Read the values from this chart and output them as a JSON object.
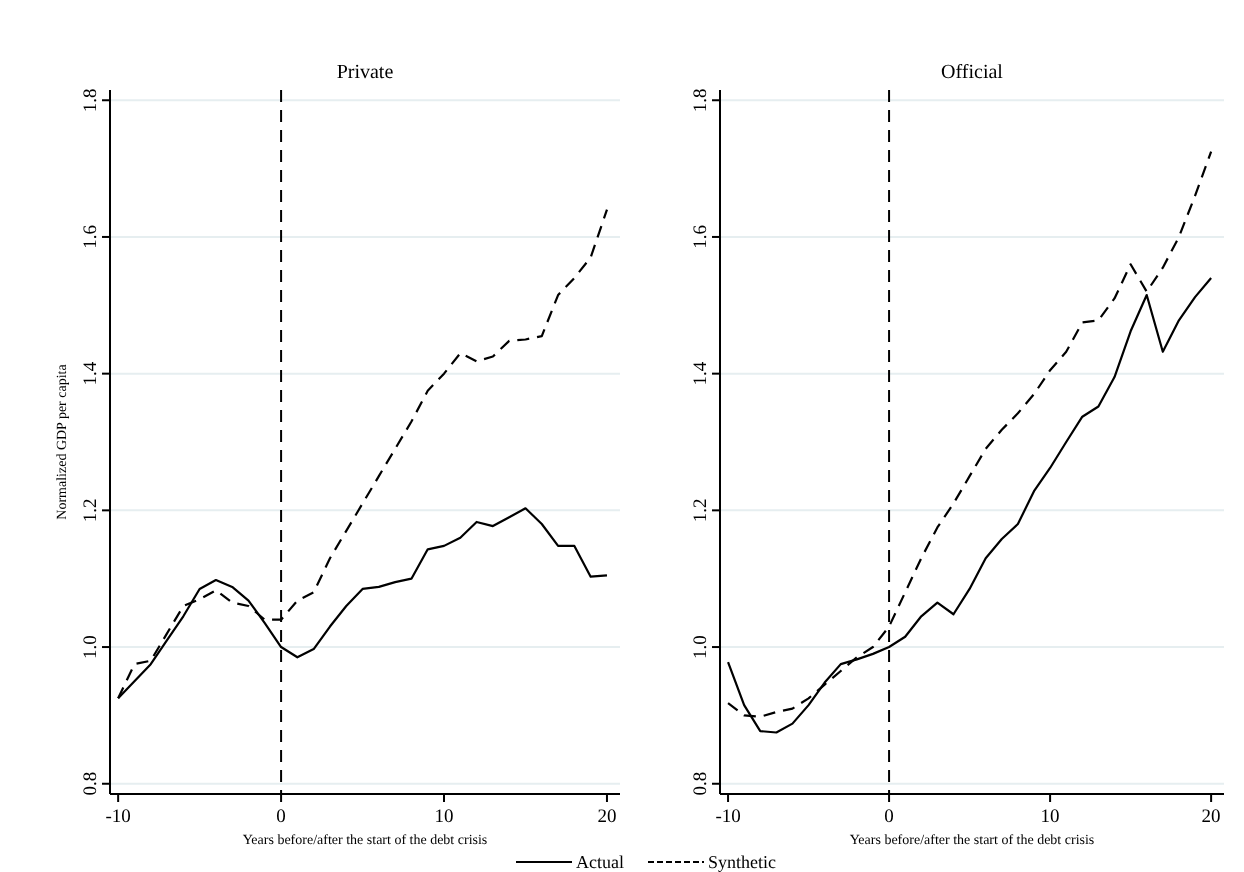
{
  "chart_data": [
    {
      "type": "line",
      "title": "Private",
      "xlabel": "Years before/after the start of the debt crisis",
      "ylabel": "Normalized GDP per capita",
      "x": [
        -10,
        -9,
        -8,
        -7,
        -6,
        -5,
        -4,
        -3,
        -2,
        -1,
        0,
        1,
        2,
        3,
        4,
        5,
        6,
        7,
        8,
        9,
        10,
        11,
        12,
        13,
        14,
        15,
        16,
        17,
        18,
        19,
        20
      ],
      "series": [
        {
          "name": "Actual",
          "color": "#000000",
          "line_style": "solid",
          "values": [
            0.925,
            0.95,
            0.975,
            1.01,
            1.045,
            1.085,
            1.098,
            1.088,
            1.068,
            1.035,
            1.0,
            0.985,
            0.997,
            1.03,
            1.06,
            1.085,
            1.088,
            1.095,
            1.1,
            1.143,
            1.148,
            1.16,
            1.183,
            1.177,
            1.19,
            1.203,
            1.18,
            1.148,
            1.148,
            1.103,
            1.105
          ]
        },
        {
          "name": "Synthetic",
          "color": "#000000",
          "line_style": "dashed",
          "values": [
            0.925,
            0.975,
            0.98,
            1.02,
            1.06,
            1.07,
            1.083,
            1.065,
            1.06,
            1.04,
            1.04,
            1.068,
            1.08,
            1.13,
            1.17,
            1.21,
            1.25,
            1.29,
            1.33,
            1.375,
            1.4,
            1.43,
            1.418,
            1.425,
            1.448,
            1.45,
            1.455,
            1.515,
            1.54,
            1.57,
            1.64
          ]
        }
      ],
      "xlim": [
        -10.5,
        20.8
      ],
      "ylim": [
        0.785,
        1.815
      ],
      "xticks": [
        -10,
        0,
        10,
        20
      ],
      "yticks": [
        0.8,
        {
          "value": 1,
          "label": "1.0"
        },
        1.2,
        1.4,
        1.6,
        1.8
      ],
      "grid": "y",
      "legend": "bottom",
      "ref_lines": [
        {
          "axis": "x",
          "value": 0,
          "line_style": "dashed",
          "color": "#000000"
        }
      ]
    },
    {
      "type": "line",
      "title": "Official",
      "xlabel": "Years before/after the start of the debt crisis",
      "x": [
        -10,
        -9,
        -8,
        -7,
        -6,
        -5,
        -4,
        -3,
        -2,
        -1,
        0,
        1,
        2,
        3,
        4,
        5,
        6,
        7,
        8,
        9,
        10,
        11,
        12,
        13,
        14,
        15,
        16,
        17,
        18,
        19,
        20
      ],
      "series": [
        {
          "color": "#000000",
          "line_style": "solid",
          "values": [
            0.978,
            0.915,
            0.877,
            0.875,
            0.888,
            0.915,
            0.948,
            0.975,
            0.982,
            0.99,
            1.0,
            1.015,
            1.045,
            1.065,
            1.048,
            1.085,
            1.13,
            1.158,
            1.18,
            1.228,
            1.262,
            1.3,
            1.337,
            1.352,
            1.395,
            1.462,
            1.515,
            1.432,
            1.478,
            1.512,
            1.54
          ]
        },
        {
          "color": "#000000",
          "line_style": "dashed",
          "values": [
            0.918,
            0.9,
            0.898,
            0.905,
            0.91,
            0.925,
            0.945,
            0.965,
            0.985,
            1.0,
            1.03,
            1.08,
            1.13,
            1.175,
            1.21,
            1.25,
            1.29,
            1.318,
            1.342,
            1.37,
            1.405,
            1.432,
            1.475,
            1.478,
            1.51,
            1.56,
            1.52,
            1.555,
            1.6,
            1.66,
            1.725
          ]
        }
      ],
      "xlim": [
        -10.5,
        20.8
      ],
      "ylim": [
        0.785,
        1.815
      ],
      "xticks": [
        -10,
        0,
        10,
        20
      ],
      "yticks": [
        0.8,
        {
          "value": 1,
          "label": "1.0"
        },
        1.2,
        1.4,
        1.6,
        1.8
      ],
      "grid": "y",
      "ref_lines": [
        {
          "axis": "x",
          "value": 0,
          "line_style": "dashed",
          "color": "#000000"
        }
      ]
    }
  ]
}
